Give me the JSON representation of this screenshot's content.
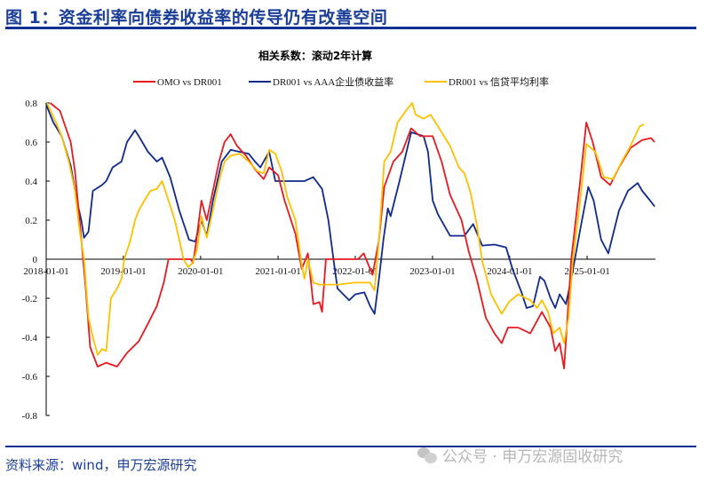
{
  "header": {
    "title": "图 1：资金利率向债券收益率的传导仍有改善空间"
  },
  "footer": {
    "source": "资料来源：wind，申万宏源研究",
    "watermark": "公众号 · 申万宏源固收研究",
    "watermark_icon": "wechat-icon"
  },
  "colors": {
    "title": "#1a3d97",
    "rule": "#0b2f93"
  },
  "chart_data": {
    "type": "line",
    "title": "相关系数：滚动2年计算",
    "xlabel": "",
    "ylabel": "",
    "ylim": [
      -0.8,
      0.8
    ],
    "xlim": [
      "2018-01-01",
      "2025-11-20"
    ],
    "yticks": [
      0.8,
      0.6,
      0.4,
      0.2,
      0,
      -0.2,
      -0.4,
      -0.6,
      -0.8
    ],
    "ytick_labels": [
      "0.8",
      "0.6",
      "0.4",
      "0.2",
      "0",
      "-0.2",
      "-0.4",
      "-0.6",
      "-0.8"
    ],
    "xticks": [
      "2018-01-01",
      "2019-01-01",
      "2020-01-01",
      "2021-01-01",
      "2022-01-01",
      "2023-01-01",
      "2024-01-01",
      "2025-01-01"
    ],
    "grid": false,
    "legend_position": "top",
    "series": [
      {
        "name": "OMO vs DR001",
        "color": "#e8191f",
        "points": [
          [
            "2018-01-20",
            0.8
          ],
          [
            "2018-03-07",
            0.76
          ],
          [
            "2018-04-27",
            0.6
          ],
          [
            "2018-05-17",
            0.45
          ],
          [
            "2018-06-08",
            0.2
          ],
          [
            "2018-07-07",
            -0.15
          ],
          [
            "2018-07-28",
            -0.45
          ],
          [
            "2018-09-01",
            -0.55
          ],
          [
            "2018-10-12",
            -0.53
          ],
          [
            "2018-12-02",
            -0.55
          ],
          [
            "2019-01-18",
            -0.48
          ],
          [
            "2019-03-15",
            -0.42
          ],
          [
            "2019-04-27",
            -0.33
          ],
          [
            "2019-06-08",
            -0.24
          ],
          [
            "2019-07-11",
            -0.12
          ],
          [
            "2019-08-02",
            0
          ],
          [
            "2019-11-16",
            0
          ],
          [
            "2019-11-26",
            -0.02
          ],
          [
            "2019-12-06",
            0.05
          ],
          [
            "2020-01-05",
            0.3
          ],
          [
            "2020-01-30",
            0.2
          ],
          [
            "2020-02-28",
            0.35
          ],
          [
            "2020-03-28",
            0.5
          ],
          [
            "2020-04-23",
            0.6
          ],
          [
            "2020-05-22",
            0.64
          ],
          [
            "2020-06-21",
            0.58
          ],
          [
            "2020-08-02",
            0.53
          ],
          [
            "2020-09-14",
            0.46
          ],
          [
            "2020-10-25",
            0.41
          ],
          [
            "2020-11-20",
            0.47
          ],
          [
            "2021-01-01",
            0.43
          ],
          [
            "2021-02-01",
            0.3
          ],
          [
            "2021-03-24",
            0.13
          ],
          [
            "2021-04-23",
            -0.05
          ],
          [
            "2021-05-22",
            0.03
          ],
          [
            "2021-06-17",
            -0.23
          ],
          [
            "2021-07-16",
            -0.22
          ],
          [
            "2021-07-28",
            -0.27
          ],
          [
            "2021-08-15",
            0
          ],
          [
            "2022-01-14",
            0
          ],
          [
            "2022-02-10",
            0.03
          ],
          [
            "2022-03-24",
            -0.08
          ],
          [
            "2022-04-23",
            0.1
          ],
          [
            "2022-05-18",
            0.37
          ],
          [
            "2022-06-30",
            0.5
          ],
          [
            "2022-08-11",
            0.55
          ],
          [
            "2022-09-22",
            0.67
          ],
          [
            "2022-11-04",
            0.63
          ],
          [
            "2023-01-02",
            0.63
          ],
          [
            "2023-02-13",
            0.5
          ],
          [
            "2023-03-25",
            0.33
          ],
          [
            "2023-05-18",
            0.2
          ],
          [
            "2023-06-21",
            0.04
          ],
          [
            "2023-07-29",
            -0.1
          ],
          [
            "2023-09-10",
            -0.3
          ],
          [
            "2023-10-21",
            -0.38
          ],
          [
            "2023-11-24",
            -0.43
          ],
          [
            "2023-12-24",
            -0.35
          ],
          [
            "2024-02-09",
            -0.35
          ],
          [
            "2024-04-07",
            -0.38
          ],
          [
            "2024-06-01",
            -0.27
          ],
          [
            "2024-07-12",
            -0.35
          ],
          [
            "2024-08-03",
            -0.47
          ],
          [
            "2024-08-24",
            -0.43
          ],
          [
            "2024-09-14",
            -0.56
          ],
          [
            "2024-10-18",
            0
          ],
          [
            "2024-11-29",
            0.4
          ],
          [
            "2024-12-28",
            0.7
          ],
          [
            "2025-01-27",
            0.6
          ],
          [
            "2025-03-08",
            0.42
          ],
          [
            "2025-04-20",
            0.38
          ],
          [
            "2025-06-01",
            0.47
          ],
          [
            "2025-07-25",
            0.57
          ],
          [
            "2025-09-18",
            0.61
          ],
          [
            "2025-10-30",
            0.62
          ],
          [
            "2025-11-16",
            0.6
          ]
        ]
      },
      {
        "name": "DR001 vs AAA企业债收益率",
        "color": "#0f2a8a",
        "points": [
          [
            "2018-01-01",
            0.8
          ],
          [
            "2018-01-05",
            0.78
          ],
          [
            "2018-02-04",
            0.7
          ],
          [
            "2018-03-15",
            0.63
          ],
          [
            "2018-04-27",
            0.48
          ],
          [
            "2018-05-26",
            0.3
          ],
          [
            "2018-06-16",
            0.2
          ],
          [
            "2018-06-29",
            0.11
          ],
          [
            "2018-07-20",
            0.14
          ],
          [
            "2018-08-10",
            0.35
          ],
          [
            "2018-09-22",
            0.38
          ],
          [
            "2018-10-12",
            0.4
          ],
          [
            "2018-11-11",
            0.47
          ],
          [
            "2018-12-23",
            0.5
          ],
          [
            "2019-01-18",
            0.6
          ],
          [
            "2019-02-25",
            0.66
          ],
          [
            "2019-03-15",
            0.63
          ],
          [
            "2019-04-27",
            0.55
          ],
          [
            "2019-06-08",
            0.5
          ],
          [
            "2019-07-03",
            0.52
          ],
          [
            "2019-08-10",
            0.42
          ],
          [
            "2019-09-22",
            0.25
          ],
          [
            "2019-11-07",
            0.1
          ],
          [
            "2019-12-06",
            0.09
          ],
          [
            "2020-01-05",
            0.2
          ],
          [
            "2020-01-30",
            0.12
          ],
          [
            "2020-02-28",
            0.3
          ],
          [
            "2020-04-10",
            0.5
          ],
          [
            "2020-05-22",
            0.56
          ],
          [
            "2020-07-03",
            0.55
          ],
          [
            "2020-08-15",
            0.54
          ],
          [
            "2020-09-14",
            0.5
          ],
          [
            "2020-10-09",
            0.47
          ],
          [
            "2020-11-20",
            0.55
          ],
          [
            "2020-12-19",
            0.4
          ],
          [
            "2021-02-01",
            0.4
          ],
          [
            "2021-03-24",
            0.4
          ],
          [
            "2021-05-06",
            0.4
          ],
          [
            "2021-06-17",
            0.42
          ],
          [
            "2021-07-28",
            0.36
          ],
          [
            "2021-08-27",
            0.2
          ],
          [
            "2021-09-26",
            -0.05
          ],
          [
            "2021-10-09",
            -0.15
          ],
          [
            "2021-12-03",
            -0.21
          ],
          [
            "2022-01-01",
            -0.18
          ],
          [
            "2022-02-13",
            -0.17
          ],
          [
            "2022-03-12",
            -0.24
          ],
          [
            "2022-04-02",
            -0.28
          ],
          [
            "2022-04-23",
            -0.1
          ],
          [
            "2022-05-14",
            0.1
          ],
          [
            "2022-06-04",
            0.26
          ],
          [
            "2022-06-17",
            0.22
          ],
          [
            "2022-07-29",
            0.4
          ],
          [
            "2022-09-22",
            0.65
          ],
          [
            "2022-11-20",
            0.63
          ],
          [
            "2022-12-11",
            0.55
          ],
          [
            "2023-01-02",
            0.3
          ],
          [
            "2023-01-27",
            0.23
          ],
          [
            "2023-03-25",
            0.12
          ],
          [
            "2023-05-06",
            0.12
          ],
          [
            "2023-06-01",
            0.12
          ],
          [
            "2023-07-12",
            0.18
          ],
          [
            "2023-08-24",
            0.07
          ],
          [
            "2023-10-21",
            0.075
          ],
          [
            "2023-12-15",
            0.06
          ],
          [
            "2024-01-14",
            -0.05
          ],
          [
            "2024-02-26",
            -0.17
          ],
          [
            "2024-03-21",
            -0.25
          ],
          [
            "2024-04-20",
            -0.24
          ],
          [
            "2024-05-23",
            -0.09
          ],
          [
            "2024-06-13",
            -0.11
          ],
          [
            "2024-07-12",
            -0.2
          ],
          [
            "2024-08-03",
            -0.25
          ],
          [
            "2024-08-24",
            -0.18
          ],
          [
            "2024-09-23",
            -0.23
          ],
          [
            "2024-10-18",
            -0.1
          ],
          [
            "2024-11-29",
            0.15
          ],
          [
            "2025-01-06",
            0.37
          ],
          [
            "2025-02-01",
            0.3
          ],
          [
            "2025-03-08",
            0.1
          ],
          [
            "2025-04-11",
            0.03
          ],
          [
            "2025-06-01",
            0.25
          ],
          [
            "2025-07-13",
            0.35
          ],
          [
            "2025-08-28",
            0.39
          ],
          [
            "2025-09-18",
            0.35
          ],
          [
            "2025-10-26",
            0.3
          ],
          [
            "2025-11-16",
            0.27
          ]
        ]
      },
      {
        "name": "DR001 vs 信贷平均利率",
        "color": "#ffc000",
        "points": [
          [
            "2018-01-05",
            0.8
          ],
          [
            "2018-02-16",
            0.7
          ],
          [
            "2018-03-15",
            0.63
          ],
          [
            "2018-04-18",
            0.5
          ],
          [
            "2018-05-17",
            0.35
          ],
          [
            "2018-06-08",
            0.15
          ],
          [
            "2018-06-29",
            0.0
          ],
          [
            "2018-07-20",
            -0.3
          ],
          [
            "2018-08-10",
            -0.4
          ],
          [
            "2018-09-01",
            -0.49
          ],
          [
            "2018-09-22",
            -0.46
          ],
          [
            "2018-10-12",
            -0.47
          ],
          [
            "2018-11-03",
            -0.2
          ],
          [
            "2018-12-02",
            -0.15
          ],
          [
            "2018-12-23",
            -0.1
          ],
          [
            "2019-01-05",
            0.0
          ],
          [
            "2019-02-04",
            0.1
          ],
          [
            "2019-02-25",
            0.2
          ],
          [
            "2019-03-15",
            0.25
          ],
          [
            "2019-04-10",
            0.3
          ],
          [
            "2019-05-09",
            0.35
          ],
          [
            "2019-06-08",
            0.36
          ],
          [
            "2019-07-03",
            0.4
          ],
          [
            "2019-08-02",
            0.3
          ],
          [
            "2019-09-01",
            0.2
          ],
          [
            "2019-09-22",
            0.1
          ],
          [
            "2019-10-12",
            0.0
          ],
          [
            "2019-11-03",
            -0.04
          ],
          [
            "2019-11-24",
            -0.02
          ],
          [
            "2019-12-15",
            0.05
          ],
          [
            "2020-01-05",
            0.22
          ],
          [
            "2020-01-30",
            0.11
          ],
          [
            "2020-02-28",
            0.25
          ],
          [
            "2020-03-28",
            0.4
          ],
          [
            "2020-04-23",
            0.5
          ],
          [
            "2020-05-22",
            0.53
          ],
          [
            "2020-07-03",
            0.54
          ],
          [
            "2020-08-15",
            0.5
          ],
          [
            "2020-09-26",
            0.45
          ],
          [
            "2020-10-25",
            0.44
          ],
          [
            "2020-11-20",
            0.56
          ],
          [
            "2020-12-19",
            0.54
          ],
          [
            "2021-01-18",
            0.45
          ],
          [
            "2021-02-13",
            0.32
          ],
          [
            "2021-03-24",
            0.2
          ],
          [
            "2021-04-23",
            -0.03
          ],
          [
            "2021-05-06",
            -0.1
          ],
          [
            "2021-05-22",
            0.0
          ],
          [
            "2021-06-17",
            -0.12
          ],
          [
            "2021-07-16",
            -0.13
          ],
          [
            "2021-08-15",
            -0.13
          ],
          [
            "2021-10-09",
            -0.13
          ],
          [
            "2022-01-01",
            -0.12
          ],
          [
            "2022-03-12",
            -0.12
          ],
          [
            "2022-04-02",
            -0.16
          ],
          [
            "2022-04-23",
            0.1
          ],
          [
            "2022-05-18",
            0.5
          ],
          [
            "2022-06-17",
            0.55
          ],
          [
            "2022-07-20",
            0.7
          ],
          [
            "2022-08-28",
            0.76
          ],
          [
            "2022-09-27",
            0.8
          ],
          [
            "2022-10-13",
            0.74
          ],
          [
            "2022-11-20",
            0.72
          ],
          [
            "2022-12-23",
            0.74
          ],
          [
            "2023-01-27",
            0.68
          ],
          [
            "2023-03-25",
            0.58
          ],
          [
            "2023-05-06",
            0.47
          ],
          [
            "2023-06-01",
            0.44
          ],
          [
            "2023-06-30",
            0.34
          ],
          [
            "2023-07-29",
            0.18
          ],
          [
            "2023-08-24",
            -0.01
          ],
          [
            "2023-10-05",
            -0.18
          ],
          [
            "2023-11-24",
            -0.28
          ],
          [
            "2023-12-28",
            -0.22
          ],
          [
            "2024-02-09",
            -0.18
          ],
          [
            "2024-04-07",
            -0.21
          ],
          [
            "2024-05-10",
            -0.25
          ],
          [
            "2024-06-01",
            -0.21
          ],
          [
            "2024-06-30",
            -0.27
          ],
          [
            "2024-07-25",
            -0.38
          ],
          [
            "2024-08-24",
            -0.35
          ],
          [
            "2024-09-14",
            -0.43
          ],
          [
            "2024-10-05",
            -0.3
          ],
          [
            "2024-10-26",
            0.0
          ],
          [
            "2024-11-29",
            0.3
          ],
          [
            "2024-12-28",
            0.59
          ],
          [
            "2025-02-09",
            0.55
          ],
          [
            "2025-03-21",
            0.42
          ],
          [
            "2025-05-02",
            0.41
          ],
          [
            "2025-06-14",
            0.5
          ],
          [
            "2025-07-25",
            0.58
          ],
          [
            "2025-09-06",
            0.68
          ],
          [
            "2025-09-27",
            0.69
          ]
        ]
      }
    ]
  }
}
